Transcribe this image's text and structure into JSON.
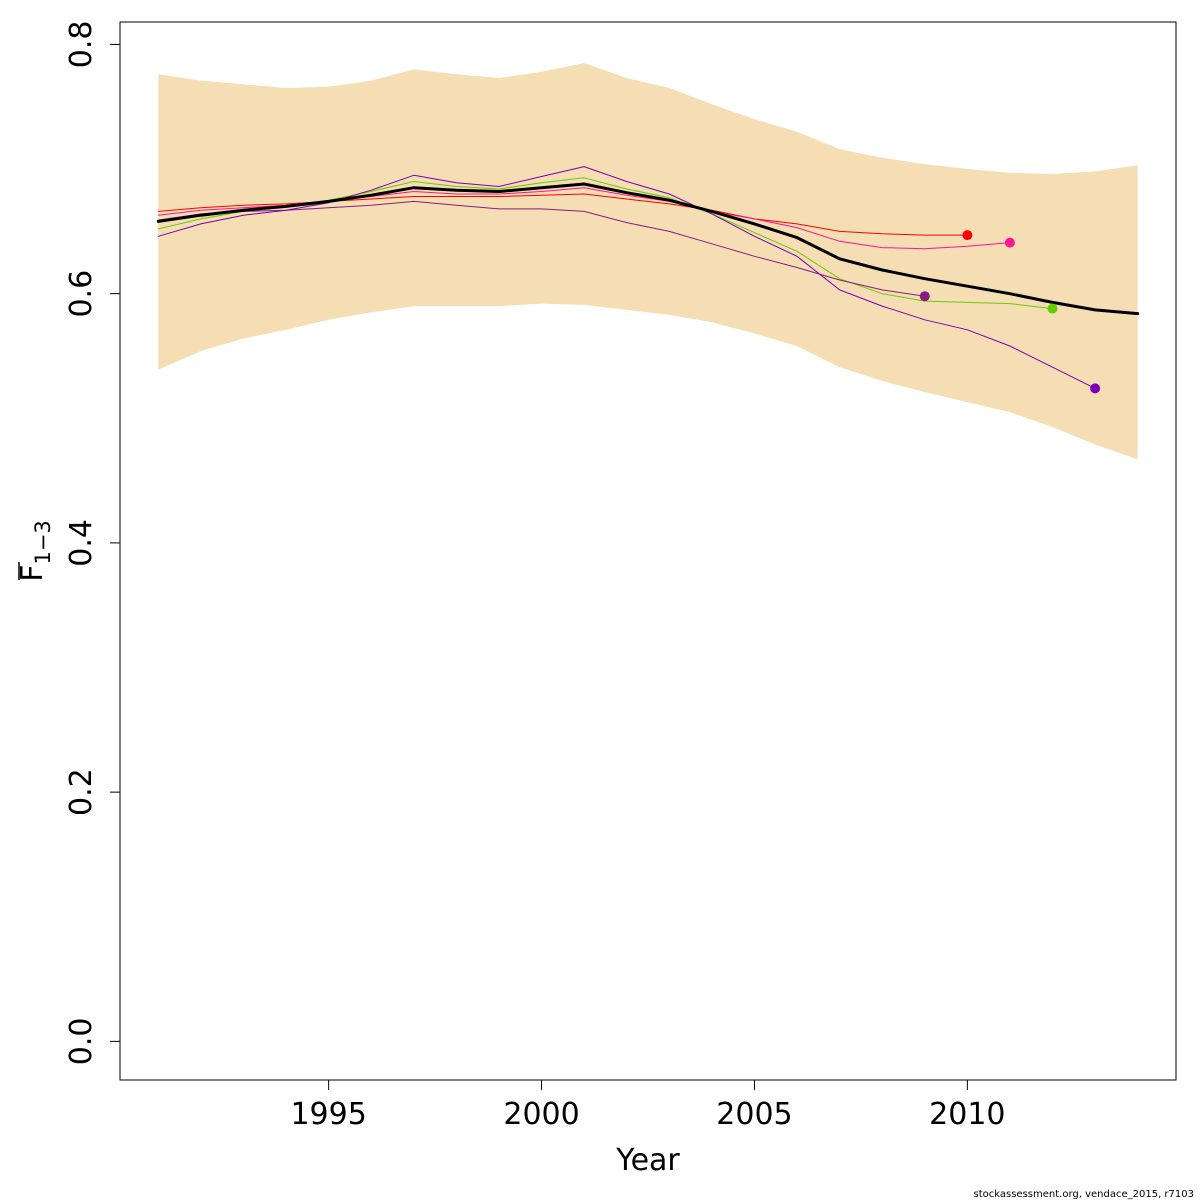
{
  "chart_data": {
    "type": "line",
    "xlabel": "Year",
    "ylabel": {
      "main": "F",
      "subscript": "1−3"
    },
    "xlim": [
      1990.1,
      2014.9
    ],
    "ylim": [
      -0.031,
      0.818
    ],
    "x_ticks": [
      {
        "value": 1995,
        "label": "1995"
      },
      {
        "value": 2000,
        "label": "2000"
      },
      {
        "value": 2005,
        "label": "2005"
      },
      {
        "value": 2010,
        "label": "2010"
      }
    ],
    "y_ticks": [
      {
        "value": 0.0,
        "label": "0.0"
      },
      {
        "value": 0.2,
        "label": "0.2"
      },
      {
        "value": 0.4,
        "label": "0.4"
      },
      {
        "value": 0.6,
        "label": "0.6"
      },
      {
        "value": 0.8,
        "label": "0.8"
      }
    ],
    "grid": false,
    "legend": "none",
    "confidence_band": {
      "color": "#F5DEB3",
      "x": [
        1991,
        1992,
        1993,
        1994,
        1995,
        1996,
        1997,
        1998,
        1999,
        2000,
        2001,
        2002,
        2003,
        2004,
        2005,
        2006,
        2007,
        2008,
        2009,
        2010,
        2011,
        2012,
        2013,
        2014
      ],
      "upper": [
        0.776,
        0.771,
        0.768,
        0.765,
        0.766,
        0.771,
        0.78,
        0.776,
        0.773,
        0.778,
        0.785,
        0.773,
        0.765,
        0.752,
        0.74,
        0.73,
        0.716,
        0.709,
        0.704,
        0.7,
        0.697,
        0.696,
        0.698,
        0.703
      ],
      "lower": [
        0.539,
        0.554,
        0.564,
        0.571,
        0.579,
        0.585,
        0.59,
        0.59,
        0.59,
        0.592,
        0.591,
        0.587,
        0.583,
        0.577,
        0.568,
        0.558,
        0.541,
        0.53,
        0.521,
        0.513,
        0.505,
        0.493,
        0.479,
        0.467
      ]
    },
    "series": [
      {
        "color": "#000000",
        "width": 3,
        "x": [
          1991,
          1992,
          1993,
          1994,
          1995,
          1996,
          1997,
          1998,
          1999,
          2000,
          2001,
          2002,
          2003,
          2004,
          2005,
          2006,
          2007,
          2008,
          2009,
          2010,
          2011,
          2012,
          2013,
          2014
        ],
        "values": [
          0.658,
          0.663,
          0.667,
          0.67,
          0.674,
          0.679,
          0.685,
          0.683,
          0.682,
          0.685,
          0.688,
          0.681,
          0.675,
          0.666,
          0.656,
          0.645,
          0.628,
          0.619,
          0.612,
          0.606,
          0.6,
          0.593,
          0.587,
          0.584
        ]
      },
      {
        "color": "#FF0000",
        "width": 1,
        "endpoint": true,
        "x": [
          1991,
          1992,
          1993,
          1994,
          1995,
          1996,
          1997,
          1998,
          1999,
          2000,
          2001,
          2002,
          2003,
          2004,
          2005,
          2006,
          2007,
          2008,
          2009,
          2010
        ],
        "values": [
          0.666,
          0.669,
          0.671,
          0.672,
          0.674,
          0.676,
          0.678,
          0.678,
          0.678,
          0.679,
          0.68,
          0.676,
          0.672,
          0.667,
          0.66,
          0.656,
          0.65,
          0.648,
          0.647,
          0.647
        ]
      },
      {
        "color": "#FF1493",
        "width": 1,
        "endpoint": true,
        "x": [
          1991,
          1992,
          1993,
          1994,
          1995,
          1996,
          1997,
          1998,
          1999,
          2000,
          2001,
          2002,
          2003,
          2004,
          2005,
          2006,
          2007,
          2008,
          2009,
          2010,
          2011
        ],
        "values": [
          0.663,
          0.667,
          0.669,
          0.671,
          0.674,
          0.678,
          0.682,
          0.68,
          0.68,
          0.682,
          0.685,
          0.679,
          0.674,
          0.666,
          0.66,
          0.653,
          0.642,
          0.637,
          0.636,
          0.638,
          0.641
        ]
      },
      {
        "color": "#66CD00",
        "width": 1,
        "endpoint": true,
        "x": [
          1991,
          1992,
          1993,
          1994,
          1995,
          1996,
          1997,
          1998,
          1999,
          2000,
          2001,
          2002,
          2003,
          2004,
          2005,
          2006,
          2007,
          2008,
          2009,
          2010,
          2011,
          2012
        ],
        "values": [
          0.652,
          0.66,
          0.666,
          0.67,
          0.675,
          0.682,
          0.69,
          0.686,
          0.684,
          0.689,
          0.693,
          0.684,
          0.677,
          0.664,
          0.649,
          0.634,
          0.612,
          0.6,
          0.594,
          0.593,
          0.592,
          0.588
        ]
      },
      {
        "color": "#8B1A89",
        "width": 1,
        "endpoint": true,
        "x": [
          1991,
          1992,
          1993,
          1994,
          1995,
          1996,
          1997,
          1998,
          1999,
          2000,
          2001,
          2002,
          2003,
          2004,
          2005,
          2006,
          2007,
          2008,
          2009
        ],
        "values": [
          0.659,
          0.664,
          0.666,
          0.667,
          0.669,
          0.671,
          0.674,
          0.671,
          0.668,
          0.668,
          0.666,
          0.657,
          0.65,
          0.64,
          0.63,
          0.621,
          0.611,
          0.603,
          0.598
        ]
      },
      {
        "color": "#7B00B4",
        "width": 1,
        "endpoint": true,
        "x": [
          1991,
          1992,
          1993,
          1994,
          1995,
          1996,
          1997,
          1998,
          1999,
          2000,
          2001,
          2002,
          2003,
          2004,
          2005,
          2006,
          2007,
          2008,
          2009,
          2010,
          2011,
          2012,
          2013
        ],
        "values": [
          0.646,
          0.656,
          0.663,
          0.667,
          0.673,
          0.683,
          0.695,
          0.689,
          0.686,
          0.694,
          0.702,
          0.69,
          0.68,
          0.664,
          0.646,
          0.63,
          0.603,
          0.59,
          0.579,
          0.571,
          0.558,
          0.541,
          0.524
        ]
      }
    ]
  },
  "footer": {
    "note": "stockassessment.org, vendace_2015, r7103"
  }
}
